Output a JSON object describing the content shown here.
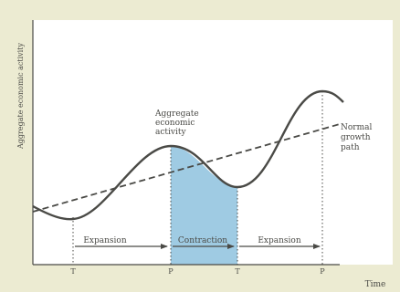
{
  "diagram": {
    "y_axis_label": "Aggregate economic activity",
    "x_axis_label": "Time",
    "curve_label": [
      "Aggregate",
      "economic",
      "activity"
    ],
    "trend_label": [
      "Normal",
      "growth",
      "path"
    ],
    "phases": [
      {
        "label": "Expansion"
      },
      {
        "label": "Contraction"
      },
      {
        "label": "Expansion"
      }
    ],
    "ticks": [
      {
        "label": "T"
      },
      {
        "label": "P"
      },
      {
        "label": "T"
      },
      {
        "label": "P"
      }
    ]
  },
  "colors": {
    "background": "#ecebd2",
    "panel": "#ffffff",
    "contraction_fill": "#9fcbe3",
    "curve": "#4a4a46"
  }
}
